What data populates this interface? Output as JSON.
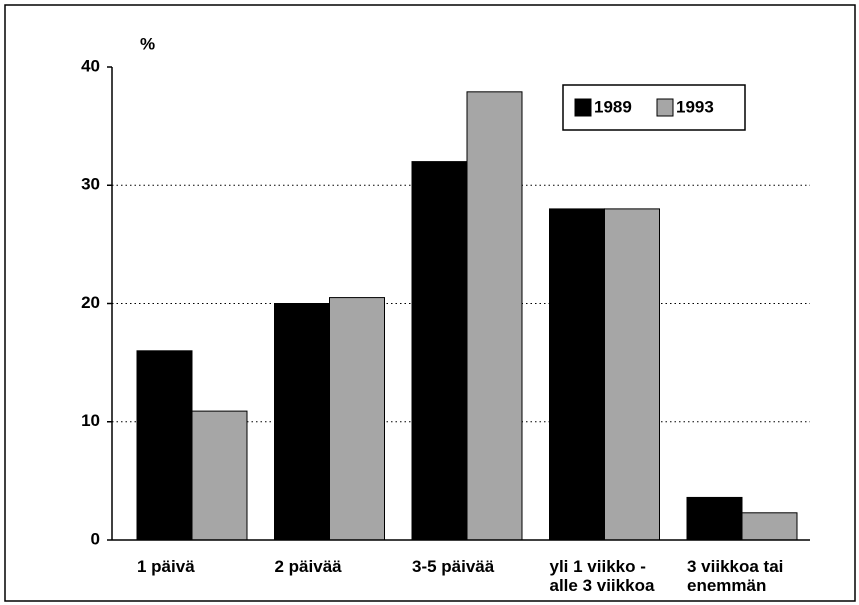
{
  "chart_data": {
    "type": "bar",
    "ylabel": "%",
    "categories": [
      "1 päivä",
      "2 päivää",
      "3-5 päivää",
      "yli 1 viikko -\nalle 3 viikkoa",
      "3 viikkoa tai\nenemmän"
    ],
    "series": [
      {
        "name": "1989",
        "color": "#000000",
        "values": [
          16,
          20,
          32,
          28,
          3.6
        ]
      },
      {
        "name": "1993",
        "color": "#a6a6a6",
        "values": [
          10.9,
          20.5,
          37.9,
          28,
          2.3
        ]
      }
    ],
    "ylim": [
      0,
      40
    ],
    "yticks": [
      0,
      10,
      20,
      30,
      40
    ],
    "grid": true,
    "legend": "upper right"
  }
}
